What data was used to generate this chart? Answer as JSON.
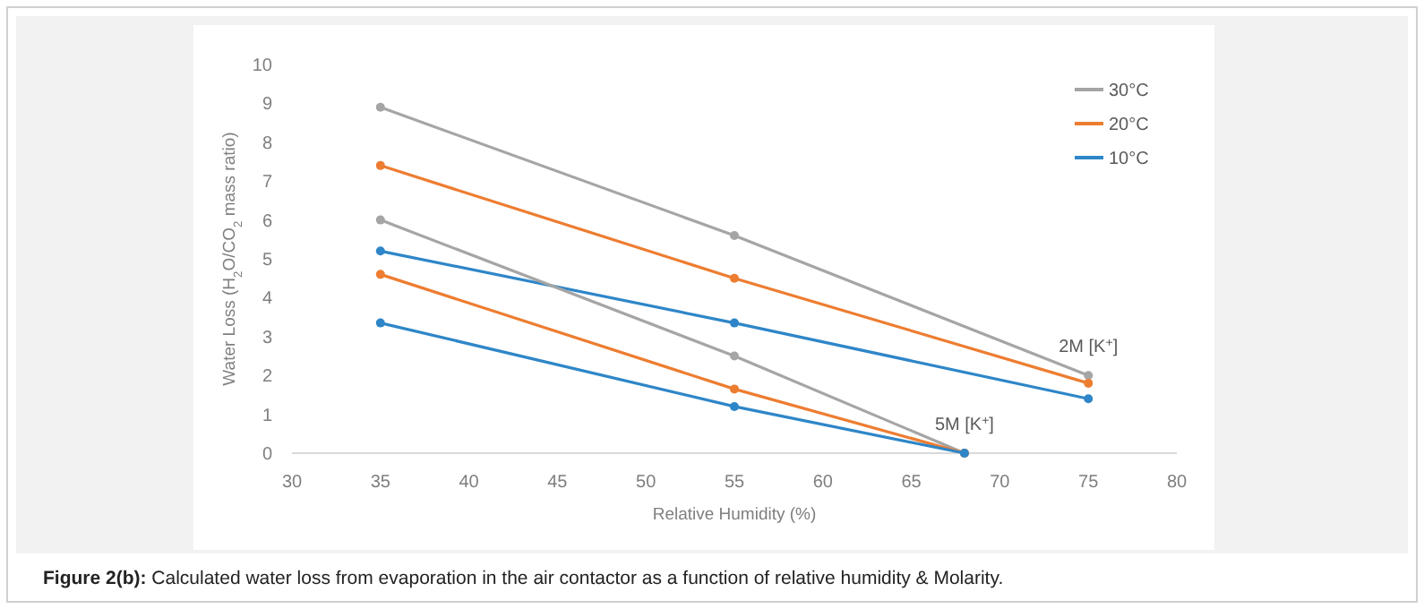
{
  "chart_data": {
    "type": "line",
    "xlabel": "Relative Humidity (%)",
    "ylabel": "Water Loss (H$_{2}$O/CO$_{2}$ mass ratio)",
    "xlim": [
      30,
      80
    ],
    "xticks": [
      30,
      35,
      40,
      45,
      50,
      55,
      60,
      65,
      70,
      75,
      80
    ],
    "ylim": [
      0,
      10
    ],
    "yticks": [
      0,
      1,
      2,
      3,
      4,
      5,
      6,
      7,
      8,
      9,
      10
    ],
    "grid": false,
    "legend": "top right",
    "marker": "circle",
    "line_style": "solid",
    "series": [
      {
        "name": "30°C",
        "color": "#a5a5a5",
        "x": [
          35,
          55,
          75
        ],
        "values": [
          8.9,
          5.6,
          2.0
        ]
      },
      {
        "name": "20°C",
        "color": "#ed7d31",
        "x": [
          35,
          55,
          75
        ],
        "values": [
          7.4,
          4.5,
          1.8
        ]
      },
      {
        "name": "10°C",
        "color": "#2e86c8",
        "x": [
          35,
          55,
          75
        ],
        "values": [
          5.2,
          3.35,
          1.4
        ]
      },
      {
        "color": "#a5a5a5",
        "x": [
          35,
          55,
          68
        ],
        "values": [
          6.0,
          2.5,
          0
        ]
      },
      {
        "color": "#ed7d31",
        "x": [
          35,
          55,
          68
        ],
        "values": [
          4.6,
          1.65,
          0
        ]
      },
      {
        "color": "#2e86c8",
        "x": [
          35,
          55,
          68
        ],
        "values": [
          3.35,
          1.2,
          0
        ]
      }
    ],
    "annotations": [
      {
        "text": "2M [K$^{+}$]",
        "x": 75,
        "y": 2.0
      },
      {
        "text": "5M [K$^{+}$]",
        "x": 68,
        "y": 0
      },
      "Figure 2(b): Calculated water loss from evaporation in the air contactor as a function of relative humidity & Molarity."
    ]
  }
}
